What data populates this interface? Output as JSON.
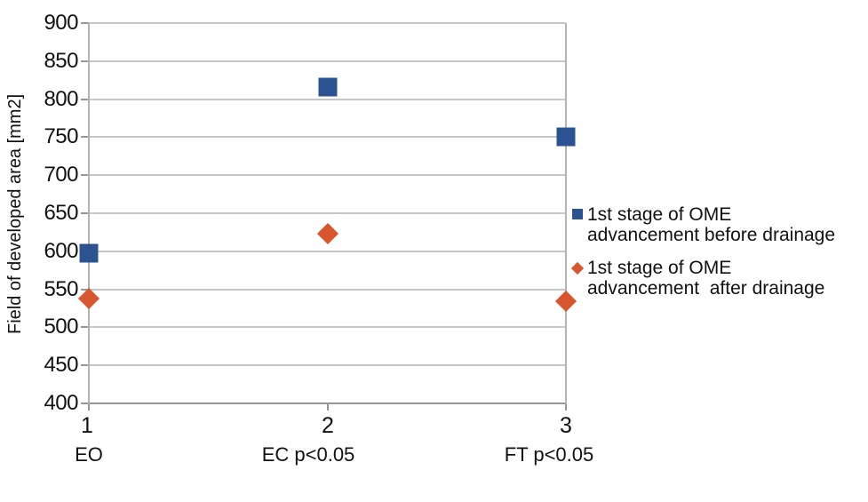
{
  "chart_data": {
    "type": "scatter",
    "title": "",
    "xlabel": "",
    "ylabel": "Field of developed area [mm2]",
    "ylim": [
      400,
      900
    ],
    "y_tick_step": 50,
    "y_ticks": [
      900,
      850,
      800,
      750,
      700,
      650,
      600,
      550,
      500,
      450,
      400
    ],
    "x_ticks": [
      "1",
      "2",
      "3"
    ],
    "x_categories": [
      "EO",
      "EC p<0.05",
      "FT p<0.05"
    ],
    "grid": "horizontal-only",
    "legend_position": "right",
    "series": [
      {
        "name": "1st stage of OME advancement before drainage",
        "marker": "square",
        "color": "#2b5392",
        "x": [
          1,
          2,
          3
        ],
        "values": [
          598,
          816,
          751
        ]
      },
      {
        "name": "1st stage of OME advancement  after drainage",
        "marker": "diamond",
        "color": "#d9552d",
        "x": [
          1,
          2,
          3
        ],
        "values": [
          538,
          623,
          534
        ]
      }
    ],
    "legend": [
      {
        "lines": [
          "1st stage of OME",
          "advancement before drainage"
        ]
      },
      {
        "lines": [
          "1st stage of OME",
          "advancement  after drainage"
        ]
      }
    ]
  },
  "colors": {
    "background": "#ffffff",
    "text": "#111111",
    "gridline": "#c6c6c6",
    "plot_border": "#b3b3b3",
    "axis_line": "#969696",
    "series_blue": "#2b5392",
    "series_orange": "#d9552d"
  }
}
